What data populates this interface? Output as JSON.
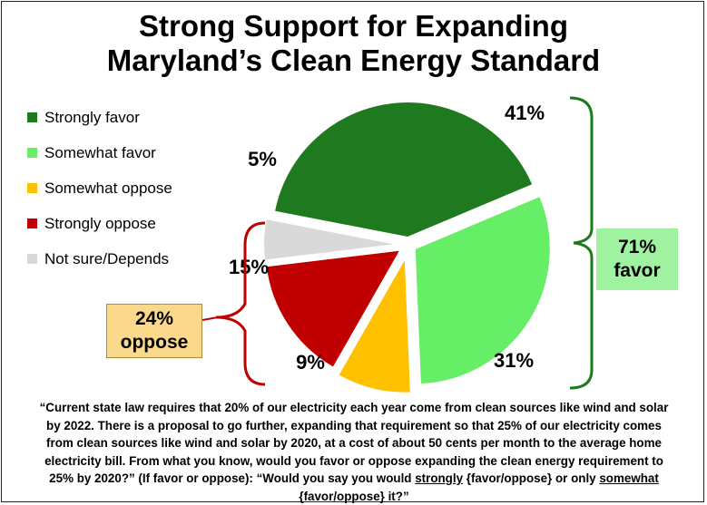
{
  "title_line1": "Strong Support for Expanding",
  "title_line2": "Maryland’s Clean Energy Standard",
  "chart_data": {
    "type": "pie",
    "title": "Strong Support for Expanding Maryland’s Clean Energy Standard",
    "slices": [
      {
        "label": "Strongly favor",
        "value": 41,
        "display": "41%",
        "color": "#1f7a1f"
      },
      {
        "label": "Somewhat favor",
        "value": 31,
        "display": "31%",
        "color": "#66ee66"
      },
      {
        "label": "Somewhat oppose",
        "value": 9,
        "display": "9%",
        "color": "#ffc000"
      },
      {
        "label": "Strongly oppose",
        "value": 15,
        "display": "15%",
        "color": "#c00000"
      },
      {
        "label": "Not sure/Depends",
        "value": 5,
        "display": "5%",
        "color": "#d9d9d9"
      }
    ],
    "legend_position": "left",
    "annotations": {
      "favor": {
        "line1": "71%",
        "line2": "favor",
        "bracket_color": "#1f7a1f",
        "fill_color": "#9ff29f"
      },
      "oppose": {
        "line1": "24%",
        "line2": "oppose",
        "bracket_color": "#c00000",
        "fill_color": "#fad98c"
      }
    }
  },
  "question": {
    "part1": "“Current state law requires that 20% of our electricity each year come from clean sources like wind and solar by 2022. There is a proposal to go further, expanding that requirement so that 25% of our electricity comes from clean sources like wind and solar by 2020, at a cost of about 50 cents per month to the average home electricity bill.  From what you know, would you favor or oppose expanding the clean energy requirement to 25% by 2020?”  (If favor or oppose): “Would you say you would ",
    "strongly": "strongly",
    "part2": " {favor/oppose} or only ",
    "somewhat": "somewhat",
    "part3": " {favor/oppose} it?”"
  }
}
